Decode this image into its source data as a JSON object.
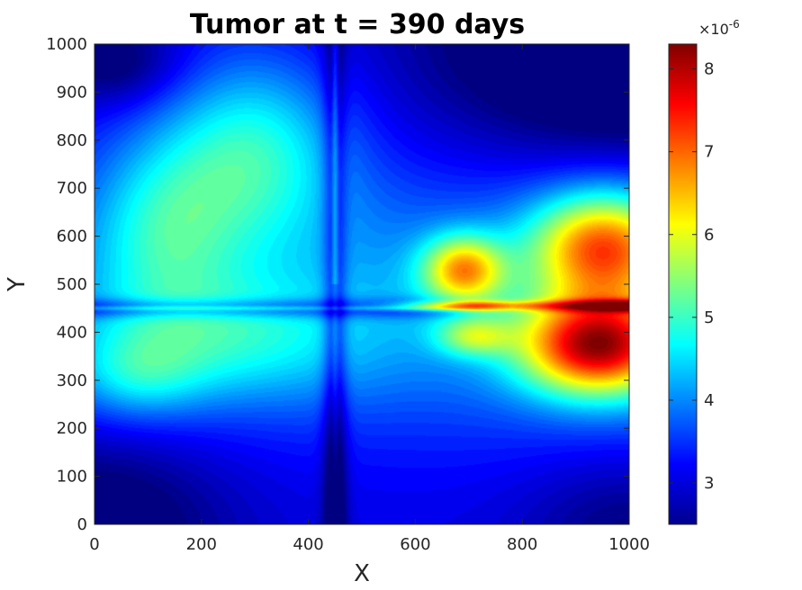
{
  "chart_data": {
    "type": "heatmap",
    "title": "Tumor at t = 390 days",
    "xlabel": "X",
    "ylabel": "Y",
    "xlim": [
      0,
      1000
    ],
    "ylim": [
      0,
      1000
    ],
    "x_ticks": [
      "0",
      "200",
      "400",
      "600",
      "800",
      "1000"
    ],
    "y_ticks": [
      "0",
      "100",
      "200",
      "300",
      "400",
      "500",
      "600",
      "700",
      "800",
      "900",
      "1000"
    ],
    "colormap": "jet",
    "colorbar": {
      "range": [
        2.5,
        8.3
      ],
      "exponent_label": "×10",
      "exponent_power": "-6",
      "ticks": [
        "3",
        "4",
        "5",
        "6",
        "7",
        "8"
      ]
    },
    "features": [
      {
        "x": 450,
        "y": 450,
        "note": "cross-shaped low-value ridges"
      },
      {
        "x": 700,
        "y": 520,
        "value": 7.0
      },
      {
        "x": 700,
        "y": 455,
        "value": 7.6
      },
      {
        "x": 950,
        "y": 550,
        "value": 7.3
      },
      {
        "x": 940,
        "y": 380,
        "value": 8.1
      },
      {
        "x": 950,
        "y": 455,
        "value": 8.3
      },
      {
        "x": 300,
        "y": 800,
        "value": 4.8
      },
      {
        "x": 0,
        "y": 0,
        "value": 2.6
      },
      {
        "x": 1000,
        "y": 1000,
        "value": 2.6
      }
    ]
  }
}
